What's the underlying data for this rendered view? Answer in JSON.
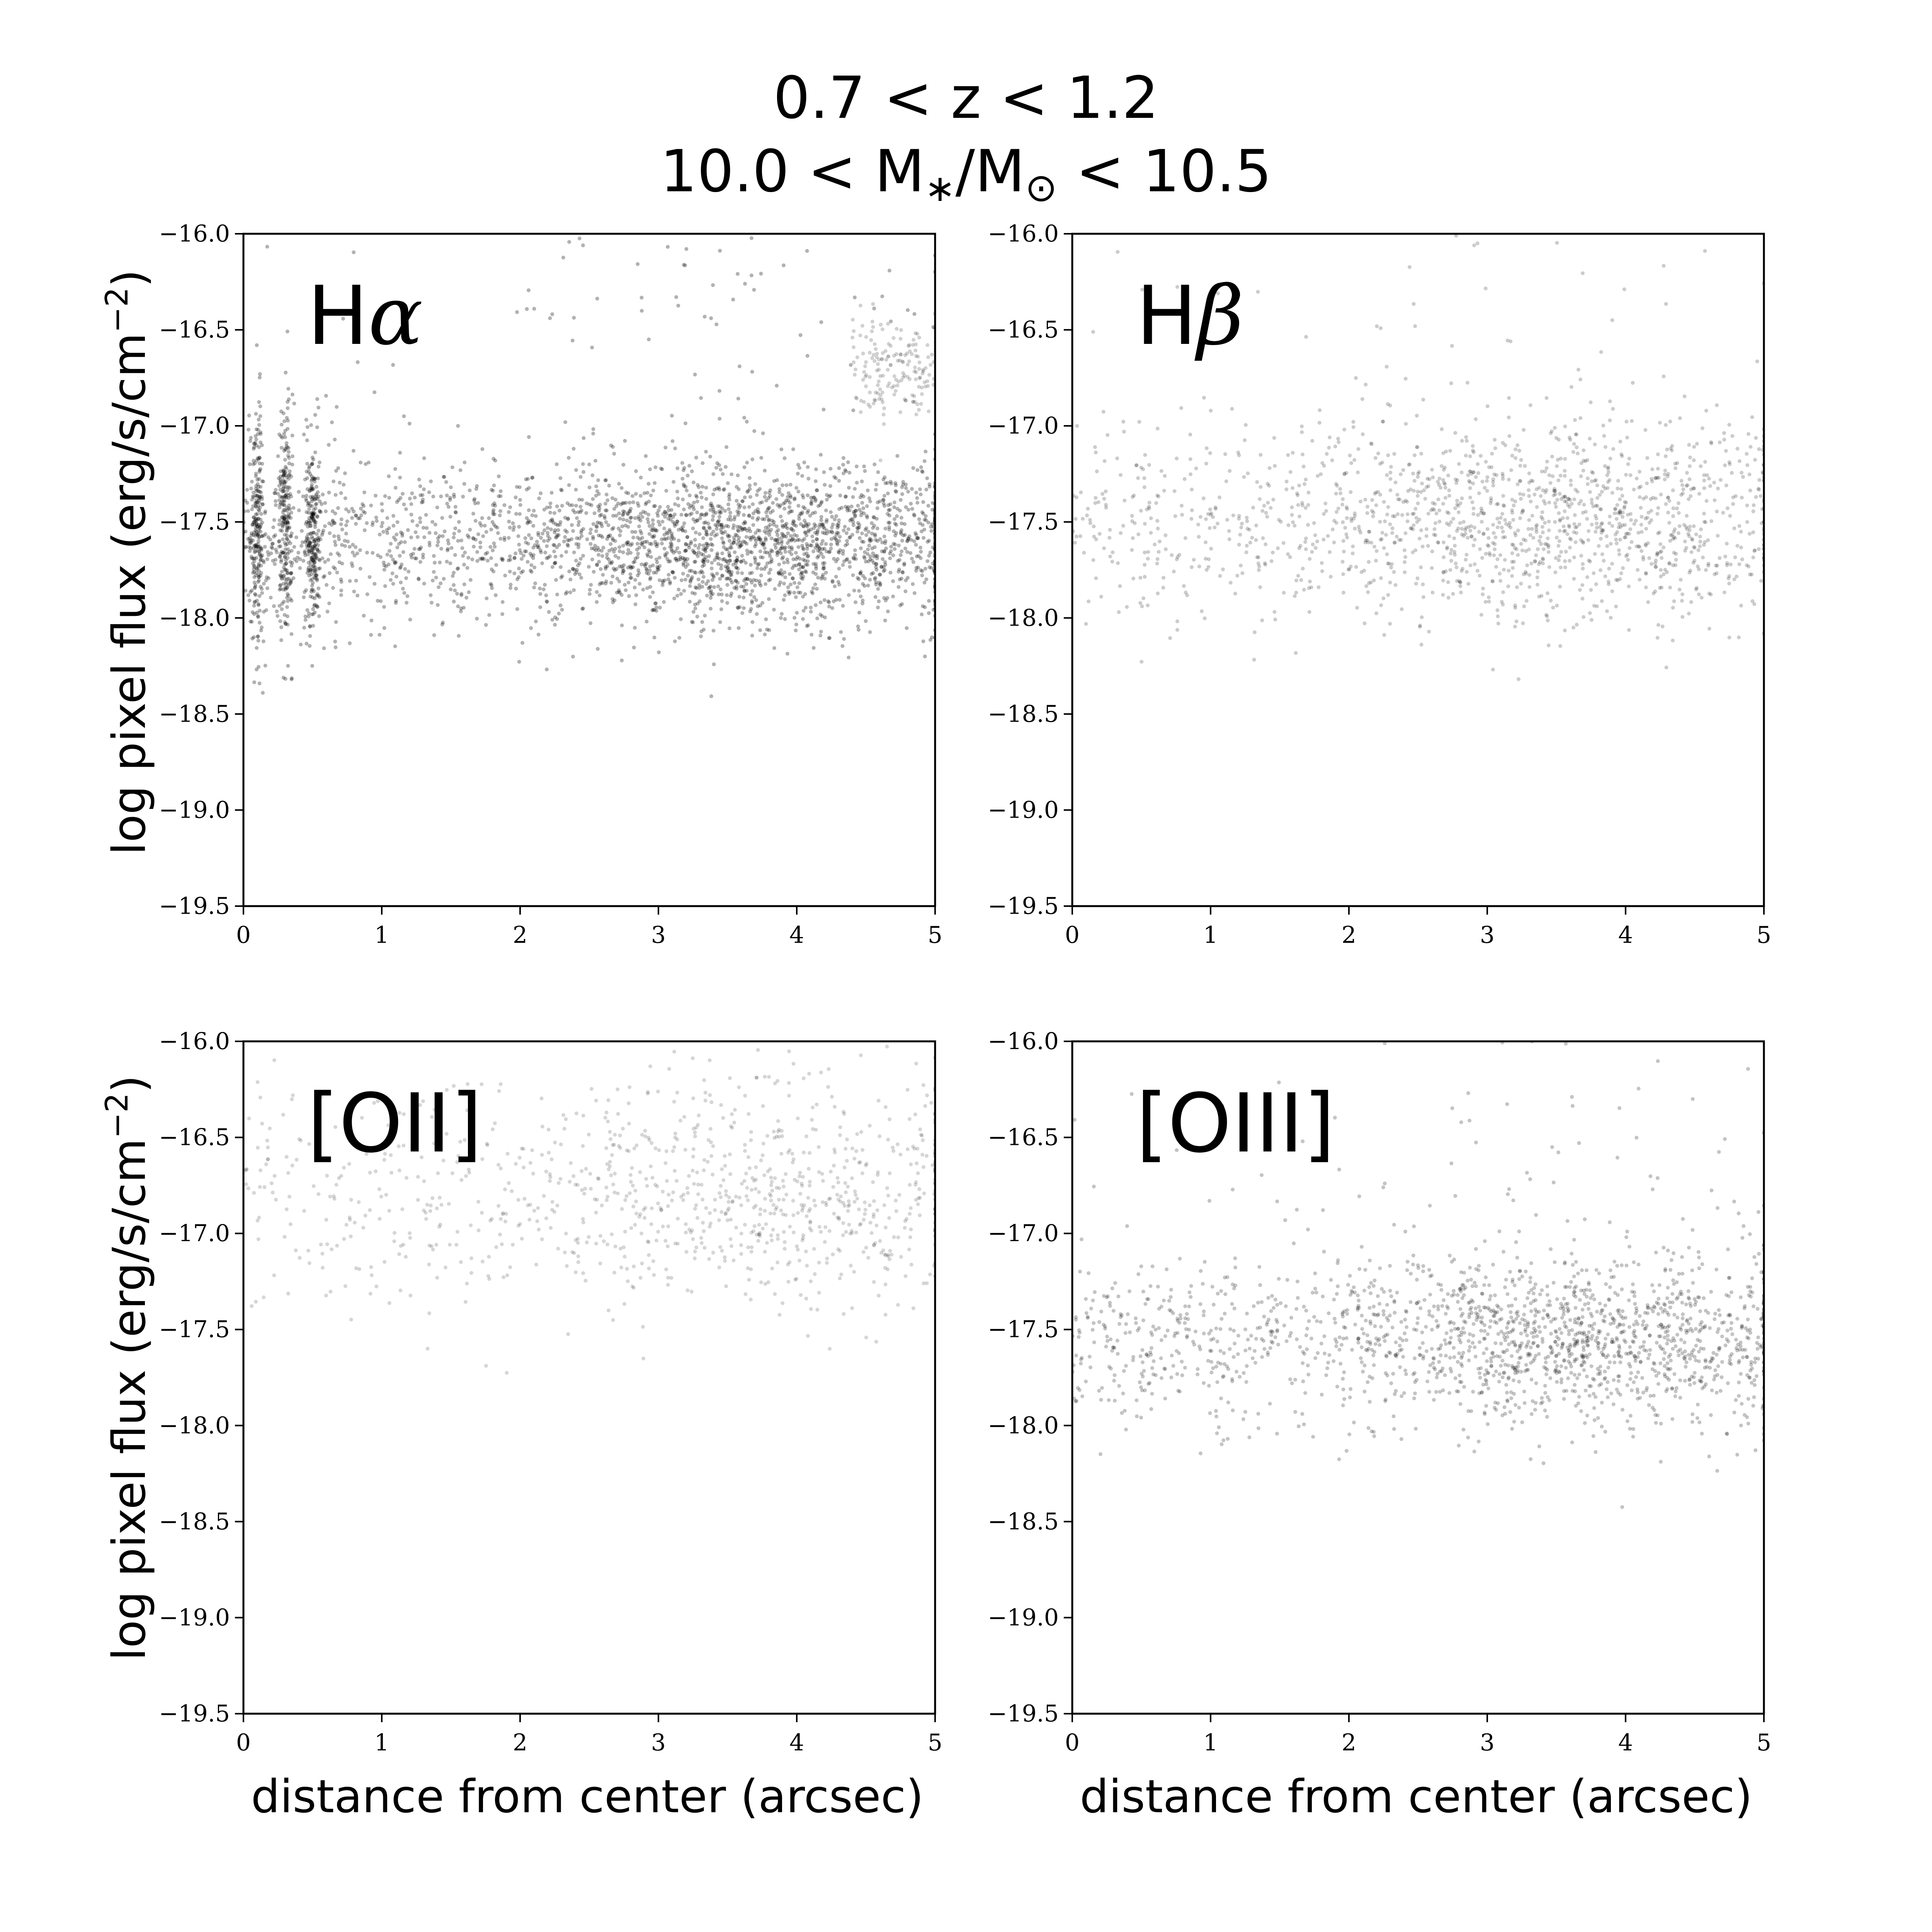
{
  "figure": {
    "title_line1": "0.7 < z < 1.2",
    "title_line2_parts": [
      "10.0 < M",
      "∗",
      "/M",
      "⊙",
      " < 10.5"
    ]
  },
  "axes_common": {
    "xlabel": "distance from center (arcsec)",
    "ylabel_parts": [
      "log pixel flux (erg/s/cm",
      "−2",
      ")"
    ],
    "xlim": [
      0,
      5
    ],
    "ylim": [
      -19.5,
      -16.0
    ],
    "xticks": [
      0,
      1,
      2,
      3,
      4,
      5
    ],
    "yticks": [
      -16.0,
      -16.5,
      -17.0,
      -17.5,
      -18.0,
      -18.5,
      -19.0,
      -19.5
    ],
    "xtick_labels": [
      "0",
      "1",
      "2",
      "3",
      "4",
      "5"
    ],
    "ytick_labels": [
      "−16.0",
      "−16.5",
      "−17.0",
      "−17.5",
      "−18.0",
      "−18.5",
      "−19.0",
      "−19.5"
    ]
  },
  "chart_data": [
    {
      "type": "scatter",
      "panel": "top-left",
      "label": "Hα",
      "label_parts": [
        "H",
        "α"
      ],
      "xlim": [
        0,
        5
      ],
      "ylim": [
        -19.5,
        -16.0
      ],
      "point_color": "#000000",
      "density": {
        "x_range": [
          0,
          5
        ],
        "center_y": -17.6,
        "spread_y": 0.2,
        "dense_x_peak": 3.7,
        "level": 1.0
      },
      "bands": [
        {
          "x": 0.1,
          "y_center": -17.5,
          "spread": 0.3
        },
        {
          "x": 0.3,
          "y_center": -17.5,
          "spread": 0.3
        },
        {
          "x": 0.5,
          "y_center": -17.55,
          "spread": 0.25
        }
      ],
      "upper_tail": {
        "x_range": [
          4.4,
          5
        ],
        "y_center": -16.7,
        "spread": 0.15
      }
    },
    {
      "type": "scatter",
      "panel": "top-right",
      "label": "Hβ",
      "label_parts": [
        "H",
        "β"
      ],
      "xlim": [
        0,
        5
      ],
      "ylim": [
        -19.5,
        -16.0
      ],
      "point_color": "#000000",
      "density": {
        "x_range": [
          0,
          5
        ],
        "center_y": -17.5,
        "spread_y": 0.25,
        "dense_x_peak": 3.5,
        "level": 0.45
      }
    },
    {
      "type": "scatter",
      "panel": "bottom-left",
      "label": "[OII]",
      "label_parts": [
        "[OII]",
        ""
      ],
      "xlim": [
        0,
        5
      ],
      "ylim": [
        -19.5,
        -16.0
      ],
      "point_color": "#000000",
      "density": {
        "x_range": [
          0,
          5
        ],
        "center_y": -16.8,
        "spread_y": 0.3,
        "dense_x_peak": 3.8,
        "level": 0.2
      }
    },
    {
      "type": "scatter",
      "panel": "bottom-right",
      "label": "[OIII]",
      "label_parts": [
        "[OIII]",
        ""
      ],
      "xlim": [
        0,
        5
      ],
      "ylim": [
        -19.5,
        -16.0
      ],
      "point_color": "#000000",
      "density": {
        "x_range": [
          0,
          5
        ],
        "center_y": -17.55,
        "spread_y": 0.22,
        "dense_x_peak": 3.6,
        "level": 0.6
      }
    }
  ]
}
